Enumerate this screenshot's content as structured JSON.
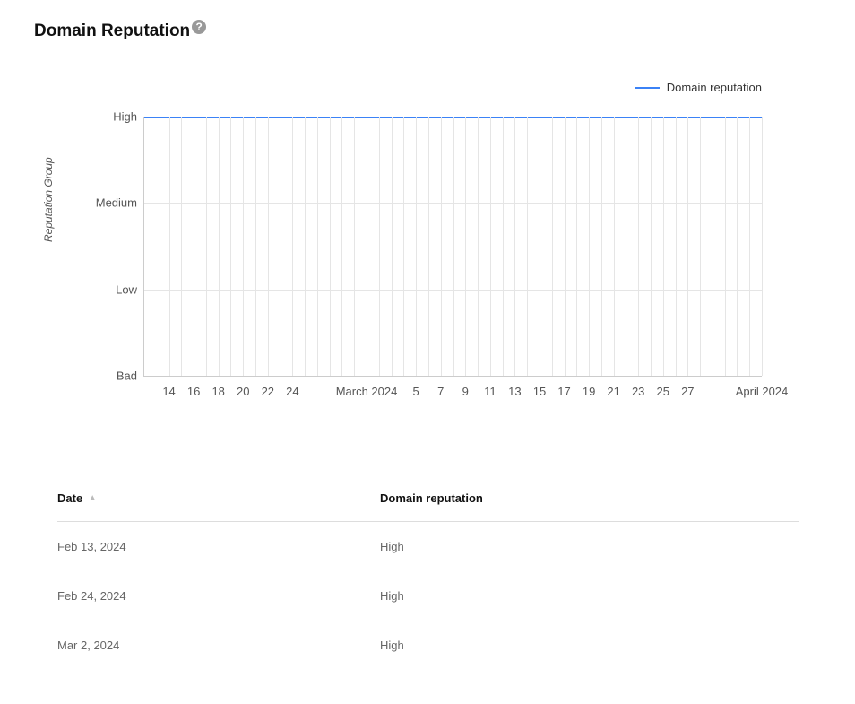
{
  "header": {
    "title": "Domain Reputation",
    "help_glyph": "?"
  },
  "chart": {
    "type": "line",
    "legend_label": "Domain reputation",
    "y_axis_title": "Reputation Group",
    "series_color": "#3b82f6",
    "grid_color": "#e5e5e5",
    "axis_color": "#cccccc",
    "background_color": "#ffffff",
    "text_color": "#555555",
    "label_fontsize": 13,
    "y_title_fontsize": 12,
    "y_ticks": [
      {
        "label": "High",
        "pos_pct": 0
      },
      {
        "label": "Medium",
        "pos_pct": 33.33
      },
      {
        "label": "Low",
        "pos_pct": 66.67
      },
      {
        "label": "Bad",
        "pos_pct": 100
      }
    ],
    "x_ticks": [
      {
        "label": "14",
        "pos_pct": 4.0,
        "labeled": true,
        "grid": true
      },
      {
        "label": "",
        "pos_pct": 6.0,
        "labeled": false,
        "grid": true
      },
      {
        "label": "16",
        "pos_pct": 8.0,
        "labeled": true,
        "grid": true
      },
      {
        "label": "",
        "pos_pct": 10.0,
        "labeled": false,
        "grid": true
      },
      {
        "label": "18",
        "pos_pct": 12.0,
        "labeled": true,
        "grid": true
      },
      {
        "label": "",
        "pos_pct": 14.0,
        "labeled": false,
        "grid": true
      },
      {
        "label": "20",
        "pos_pct": 16.0,
        "labeled": true,
        "grid": true
      },
      {
        "label": "",
        "pos_pct": 18.0,
        "labeled": false,
        "grid": true
      },
      {
        "label": "22",
        "pos_pct": 20.0,
        "labeled": true,
        "grid": true
      },
      {
        "label": "",
        "pos_pct": 22.0,
        "labeled": false,
        "grid": true
      },
      {
        "label": "24",
        "pos_pct": 24.0,
        "labeled": true,
        "grid": true
      },
      {
        "label": "",
        "pos_pct": 26.0,
        "labeled": false,
        "grid": true
      },
      {
        "label": "",
        "pos_pct": 28.0,
        "labeled": false,
        "grid": true
      },
      {
        "label": "",
        "pos_pct": 30.0,
        "labeled": false,
        "grid": true
      },
      {
        "label": "",
        "pos_pct": 32.0,
        "labeled": false,
        "grid": true
      },
      {
        "label": "",
        "pos_pct": 34.0,
        "labeled": false,
        "grid": true
      },
      {
        "label": "March 2024",
        "pos_pct": 36.0,
        "labeled": true,
        "grid": true
      },
      {
        "label": "",
        "pos_pct": 38.0,
        "labeled": false,
        "grid": true
      },
      {
        "label": "",
        "pos_pct": 40.0,
        "labeled": false,
        "grid": true
      },
      {
        "label": "",
        "pos_pct": 42.0,
        "labeled": false,
        "grid": true
      },
      {
        "label": "5",
        "pos_pct": 44.0,
        "labeled": true,
        "grid": true
      },
      {
        "label": "",
        "pos_pct": 46.0,
        "labeled": false,
        "grid": true
      },
      {
        "label": "7",
        "pos_pct": 48.0,
        "labeled": true,
        "grid": true
      },
      {
        "label": "",
        "pos_pct": 50.0,
        "labeled": false,
        "grid": true
      },
      {
        "label": "9",
        "pos_pct": 52.0,
        "labeled": true,
        "grid": true
      },
      {
        "label": "",
        "pos_pct": 54.0,
        "labeled": false,
        "grid": true
      },
      {
        "label": "11",
        "pos_pct": 56.0,
        "labeled": true,
        "grid": true
      },
      {
        "label": "",
        "pos_pct": 58.0,
        "labeled": false,
        "grid": true
      },
      {
        "label": "13",
        "pos_pct": 60.0,
        "labeled": true,
        "grid": true
      },
      {
        "label": "",
        "pos_pct": 62.0,
        "labeled": false,
        "grid": true
      },
      {
        "label": "15",
        "pos_pct": 64.0,
        "labeled": true,
        "grid": true
      },
      {
        "label": "",
        "pos_pct": 66.0,
        "labeled": false,
        "grid": true
      },
      {
        "label": "17",
        "pos_pct": 68.0,
        "labeled": true,
        "grid": true
      },
      {
        "label": "",
        "pos_pct": 70.0,
        "labeled": false,
        "grid": true
      },
      {
        "label": "19",
        "pos_pct": 72.0,
        "labeled": true,
        "grid": true
      },
      {
        "label": "",
        "pos_pct": 74.0,
        "labeled": false,
        "grid": true
      },
      {
        "label": "21",
        "pos_pct": 76.0,
        "labeled": true,
        "grid": true
      },
      {
        "label": "",
        "pos_pct": 78.0,
        "labeled": false,
        "grid": true
      },
      {
        "label": "23",
        "pos_pct": 80.0,
        "labeled": true,
        "grid": true
      },
      {
        "label": "",
        "pos_pct": 82.0,
        "labeled": false,
        "grid": true
      },
      {
        "label": "25",
        "pos_pct": 84.0,
        "labeled": true,
        "grid": true
      },
      {
        "label": "",
        "pos_pct": 86.0,
        "labeled": false,
        "grid": true
      },
      {
        "label": "27",
        "pos_pct": 88.0,
        "labeled": true,
        "grid": true
      },
      {
        "label": "",
        "pos_pct": 90.0,
        "labeled": false,
        "grid": true
      },
      {
        "label": "",
        "pos_pct": 92.0,
        "labeled": false,
        "grid": true
      },
      {
        "label": "",
        "pos_pct": 94.0,
        "labeled": false,
        "grid": true
      },
      {
        "label": "",
        "pos_pct": 96.0,
        "labeled": false,
        "grid": true
      },
      {
        "label": "",
        "pos_pct": 98.0,
        "labeled": false,
        "grid": true
      },
      {
        "label": "",
        "pos_pct": 99.0,
        "labeled": false,
        "grid": true
      },
      {
        "label": "April 2024",
        "pos_pct": 100.0,
        "labeled": true,
        "grid": true
      }
    ],
    "series": {
      "level": "High",
      "y_pos_pct": 0
    }
  },
  "table": {
    "columns": {
      "date": "Date",
      "reputation": "Domain reputation"
    },
    "sort_glyph": "▲",
    "rows": [
      {
        "date": "Feb 13, 2024",
        "reputation": "High"
      },
      {
        "date": "Feb 24, 2024",
        "reputation": "High"
      },
      {
        "date": "Mar 2, 2024",
        "reputation": "High"
      }
    ]
  }
}
